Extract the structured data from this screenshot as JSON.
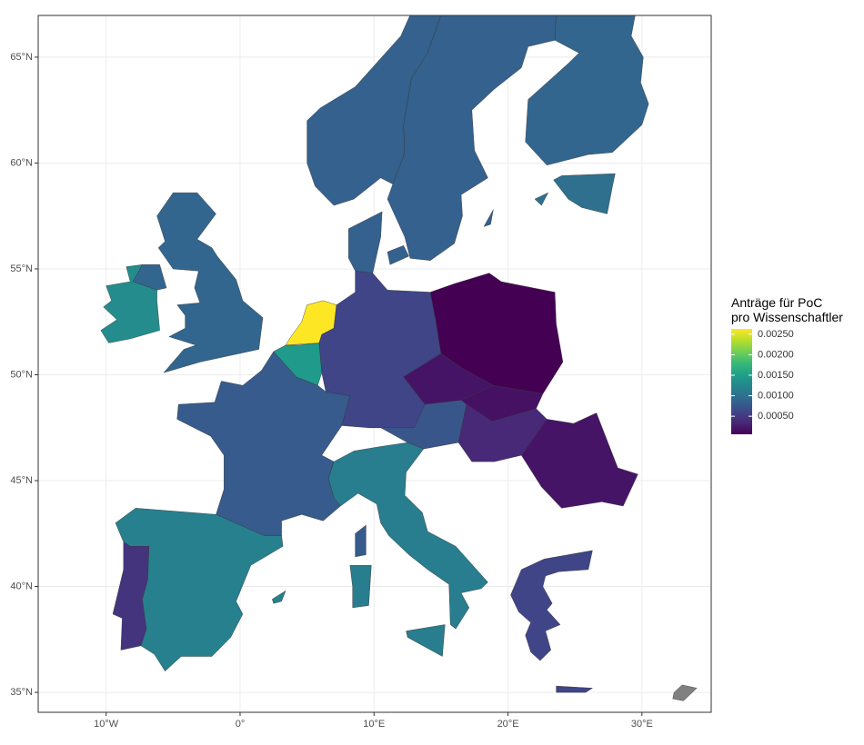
{
  "chart_data": {
    "type": "choropleth",
    "legend_title": "Anträge für PoC\npro Wissenschaftler",
    "values": [
      0.0009,
      0.0013,
      0.0008,
      0.00145,
      0.00263,
      0.0006,
      0.00085,
      6e-05,
      0.0002,
      0.00018,
      0.00075,
      0.00035,
      0.0002,
      0.00115,
      0.00118,
      0.00045,
      0.00085,
      0.00085,
      0.0009,
      0.001,
      0.0006,
      null
    ],
    "color_lim": [
      6e-05,
      0.00263
    ],
    "colors": [
      "#440154",
      "#482878",
      "#3e4989",
      "#31688e",
      "#26828e",
      "#1f9e89",
      "#35b779",
      "#6ece58",
      "#b5de2b",
      "#fde725"
    ],
    "na_color": "#808080",
    "legend_ticks": [
      {
        "value": 0.0005,
        "label": "0.00050"
      },
      {
        "value": 0.001,
        "label": "0.00100"
      },
      {
        "value": 0.0015,
        "label": "0.00150"
      },
      {
        "value": 0.002,
        "label": "0.00200"
      },
      {
        "value": 0.0025,
        "label": "0.00250"
      }
    ],
    "xlim": [
      -15.07,
      35.17
    ],
    "ylim": [
      34.06,
      66.97
    ],
    "xticks": [
      {
        "value": -10,
        "label": "10°W"
      },
      {
        "value": 0,
        "label": "0°"
      },
      {
        "value": 10,
        "label": "10°E"
      },
      {
        "value": 20,
        "label": "20°E"
      },
      {
        "value": 30,
        "label": "30°E"
      }
    ],
    "yticks": [
      {
        "value": 35,
        "label": "35°N"
      },
      {
        "value": 40,
        "label": "40°N"
      },
      {
        "value": 45,
        "label": "45°N"
      },
      {
        "value": 50,
        "label": "50°N"
      },
      {
        "value": 55,
        "label": "55°N"
      },
      {
        "value": 60,
        "label": "60°N"
      },
      {
        "value": 65,
        "label": "65°N"
      }
    ],
    "grid": true
  }
}
